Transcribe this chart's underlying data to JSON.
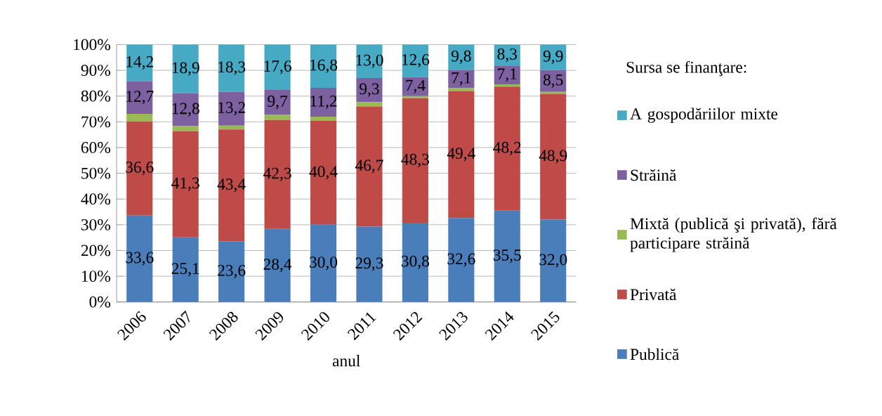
{
  "chart_data": {
    "type": "bar",
    "stacked": true,
    "xlabel": "anul",
    "legend_title": "Sursa se finanţare:",
    "legend": "right",
    "grid": "y",
    "categories": [
      "2006",
      "2007",
      "2008",
      "2009",
      "2010",
      "2011",
      "2012",
      "2013",
      "2014",
      "2015"
    ],
    "ylim": [
      0,
      100
    ],
    "yticks": [
      {
        "value": 0,
        "label": "0%"
      },
      {
        "value": 10,
        "label": "10%"
      },
      {
        "value": 20,
        "label": "20%"
      },
      {
        "value": 30,
        "label": "30%"
      },
      {
        "value": 40,
        "label": "40%"
      },
      {
        "value": 50,
        "label": "50%"
      },
      {
        "value": 60,
        "label": "60%"
      },
      {
        "value": 70,
        "label": "70%"
      },
      {
        "value": 80,
        "label": "80%"
      },
      {
        "value": 90,
        "label": "90%"
      },
      {
        "value": 100,
        "label": "100%"
      }
    ],
    "series": [
      {
        "name": "Publică",
        "color": "#4a7ebb",
        "values": [
          33.6,
          25.1,
          23.6,
          28.4,
          30.0,
          29.3,
          30.8,
          32.6,
          35.5,
          32.0
        ],
        "value_labels": [
          "33,6",
          "25,1",
          "23,6",
          "28,4",
          "30,0",
          "29,3",
          "30,8",
          "32,6",
          "35,5",
          "32,0"
        ]
      },
      {
        "name": "Privată",
        "color": "#be4b48",
        "values": [
          36.6,
          41.3,
          43.4,
          42.3,
          40.4,
          46.7,
          48.3,
          49.4,
          48.2,
          48.9
        ],
        "value_labels": [
          "36,6",
          "41,3",
          "43,4",
          "42,3",
          "40,4",
          "46,7",
          "48,3",
          "49,4",
          "48,2",
          "48,9"
        ]
      },
      {
        "name": "Mixtă (publică şi privată), fără participare străină",
        "color": "#98b954",
        "values": [
          2.9,
          1.9,
          1.5,
          2.0,
          1.6,
          1.7,
          0.9,
          1.1,
          0.9,
          0.7
        ]
      },
      {
        "name": "Străină",
        "color": "#7d60a0",
        "values": [
          12.7,
          12.8,
          13.2,
          9.7,
          11.2,
          9.3,
          7.4,
          7.1,
          7.1,
          8.5
        ],
        "value_labels": [
          "12,7",
          "12,8",
          "13,2",
          "9,7",
          "11,2",
          "9,3",
          "7,4",
          "7,1",
          "7,1",
          "8,5"
        ]
      },
      {
        "name": "A gospodăriilor mixte",
        "color": "#46aac5",
        "values": [
          14.2,
          18.9,
          18.3,
          17.6,
          16.8,
          13.0,
          12.6,
          9.8,
          8.3,
          9.9
        ],
        "value_labels": [
          "14,2",
          "18,9",
          "18,3",
          "17,6",
          "16,8",
          "13,0",
          "12,6",
          "9,8",
          "8,3",
          "9,9"
        ]
      }
    ]
  }
}
